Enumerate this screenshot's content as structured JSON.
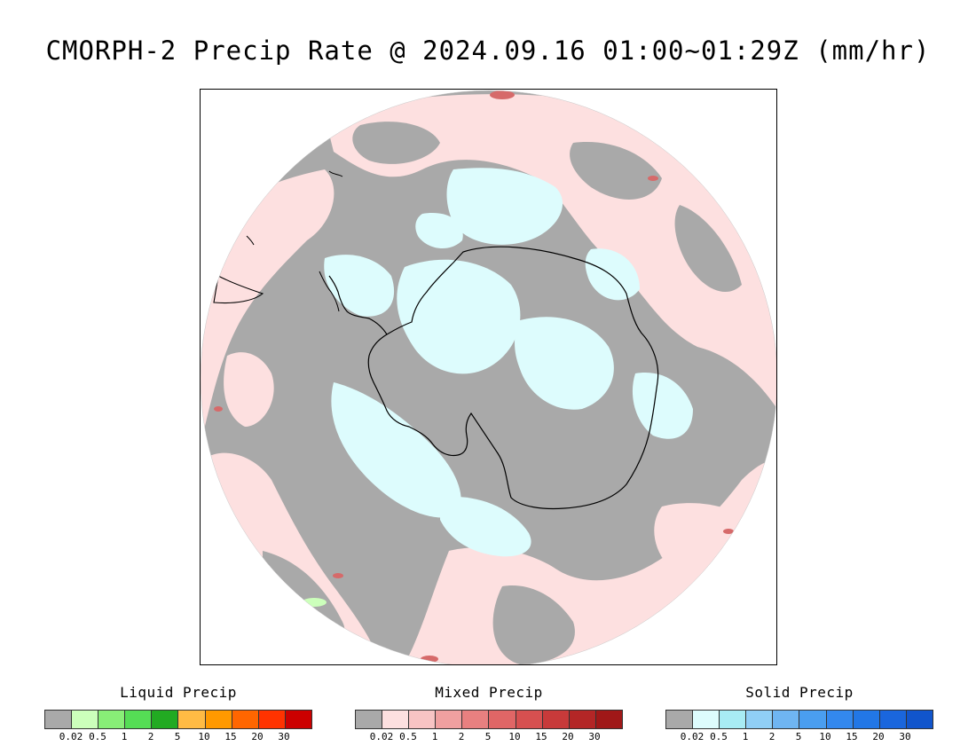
{
  "title": "CMORPH-2 Precip Rate @ 2024.09.16 01:00~01:29Z (mm/hr)",
  "map": {
    "projection": "south-polar-stereographic",
    "region": "Antarctica / Southern Ocean",
    "colors": {
      "no_rain_gray": "#a9a9a9",
      "mixed_light_pink": "#fde0e0",
      "solid_light_cyan": "#ddfcfd",
      "mixed_dark_red": "#d66a6a",
      "liquid_light_green": "#ccffbb",
      "coastline": "#000000"
    }
  },
  "legends": [
    {
      "title": "Liquid Precip",
      "ticks": [
        "0.02",
        "0.5",
        "1",
        "2",
        "5",
        "10",
        "15",
        "20",
        "30"
      ],
      "colors": [
        "#a9a9a9",
        "#ccffbb",
        "#88ee77",
        "#55dd55",
        "#22aa22",
        "#ffbb44",
        "#ff9900",
        "#ff6600",
        "#ff3300",
        "#cc0000"
      ]
    },
    {
      "title": "Mixed Precip",
      "ticks": [
        "0.02",
        "0.5",
        "1",
        "2",
        "5",
        "10",
        "15",
        "20",
        "30"
      ],
      "colors": [
        "#a9a9a9",
        "#fde0e0",
        "#f8c4c4",
        "#f0a0a0",
        "#e88080",
        "#e06666",
        "#d65050",
        "#c83a3a",
        "#b32626",
        "#a01818"
      ]
    },
    {
      "title": "Solid Precip",
      "ticks": [
        "0.02",
        "0.5",
        "1",
        "2",
        "5",
        "10",
        "15",
        "20",
        "30"
      ],
      "colors": [
        "#a9a9a9",
        "#ddfcfd",
        "#a8ecf4",
        "#90cff6",
        "#6fb5f2",
        "#4a9ef0",
        "#3388ee",
        "#2277e6",
        "#1a66dd",
        "#1155cc"
      ]
    }
  ]
}
